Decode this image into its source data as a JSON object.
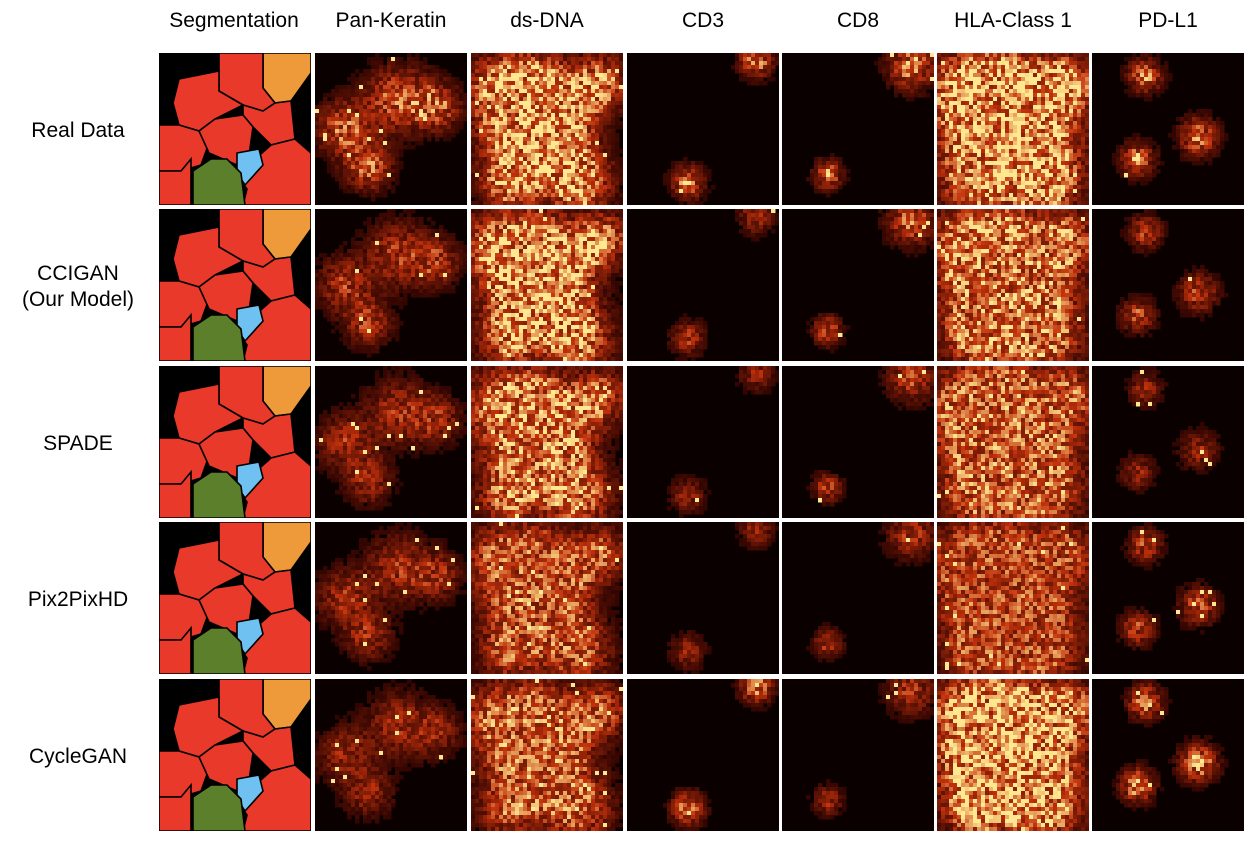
{
  "figure": {
    "column_labels": [
      "Segmentation",
      "Pan-Keratin",
      "ds-DNA",
      "CD3",
      "CD8",
      "HLA-Class 1",
      "PD-L1"
    ],
    "row_labels": [
      {
        "lines": [
          "Real Data"
        ]
      },
      {
        "lines": [
          "CCIGAN",
          "(Our Model)"
        ]
      },
      {
        "lines": [
          "SPADE"
        ]
      },
      {
        "lines": [
          "Pix2PixHD"
        ]
      },
      {
        "lines": [
          "CycleGAN"
        ]
      }
    ],
    "colors": {
      "background": "#0b0000",
      "cell_red": "#e8392b",
      "cell_orange": "#ee9a3a",
      "cell_blue": "#6fc1f2",
      "cell_green": "#5b7f2b",
      "heatmap_low": "#200000",
      "heatmap_mid": "#c0300b",
      "heatmap_high": "#ffe890"
    }
  }
}
